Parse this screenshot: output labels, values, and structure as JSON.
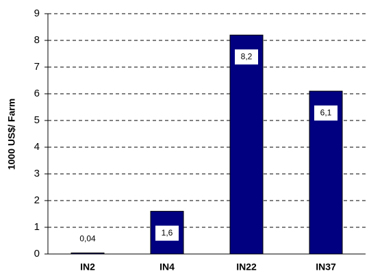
{
  "chart_data": {
    "type": "bar",
    "y_label": "1000 US$/ Farm",
    "categories": [
      "IN2",
      "IN4",
      "IN22",
      "IN37"
    ],
    "values": [
      0.04,
      1.6,
      8.2,
      6.1
    ],
    "value_labels": [
      "0,04",
      "1,6",
      "8,2",
      "6,1"
    ],
    "color": "#000080",
    "ylim": [
      0,
      9
    ],
    "yticks": [
      0,
      1,
      2,
      3,
      4,
      5,
      6,
      7,
      8,
      9
    ],
    "grid": true
  }
}
